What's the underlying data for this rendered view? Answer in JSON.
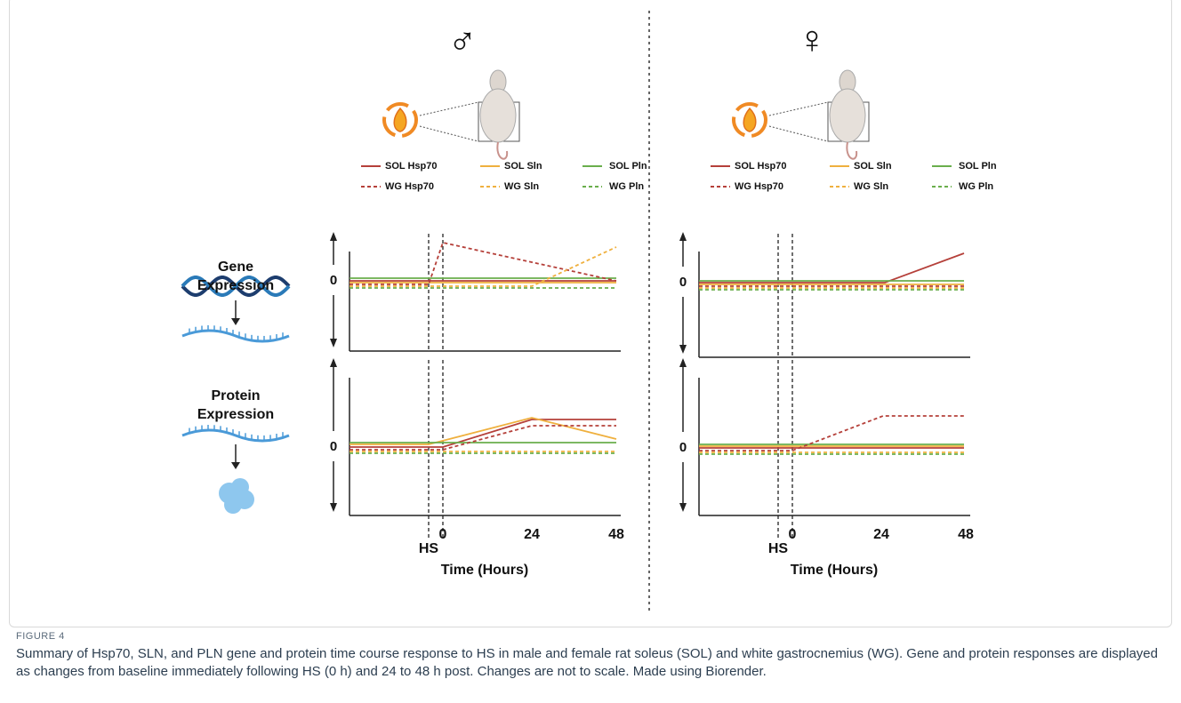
{
  "panels": [
    {
      "sex_symbol": "♂",
      "legend": [
        "SOL Hsp70",
        "SOL Sln",
        "SOL Pln",
        "WG Hsp70",
        "WG Sln",
        "WG Pln"
      ],
      "rows": [
        {
          "zero_label": "0"
        },
        {
          "zero_label": "0"
        }
      ],
      "x_ticks": [
        "0",
        "24",
        "48"
      ],
      "hs_label": "HS",
      "x_label": "Time (Hours)"
    },
    {
      "sex_symbol": "♀",
      "legend": [
        "SOL Hsp70",
        "SOL Sln",
        "SOL Pln",
        "WG Hsp70",
        "WG Sln",
        "WG Pln"
      ],
      "rows": [
        {
          "zero_label": "0"
        },
        {
          "zero_label": "0"
        }
      ],
      "x_ticks": [
        "0",
        "24",
        "48"
      ],
      "hs_label": "HS",
      "x_label": "Time (Hours)"
    }
  ],
  "row_labels": [
    "Gene Expression",
    "Protein Expression"
  ],
  "figure": {
    "label": "FIGURE 4",
    "caption": "Summary of Hsp70, SLN, and PLN gene and protein time course response to HS in male and female rat soleus (SOL) and white gastrocnemius (WG). Gene and protein responses are displayed as changes from baseline immediately following HS (0 h) and 24 to 48 h post. Changes are not to scale. Made using Biorender."
  }
}
